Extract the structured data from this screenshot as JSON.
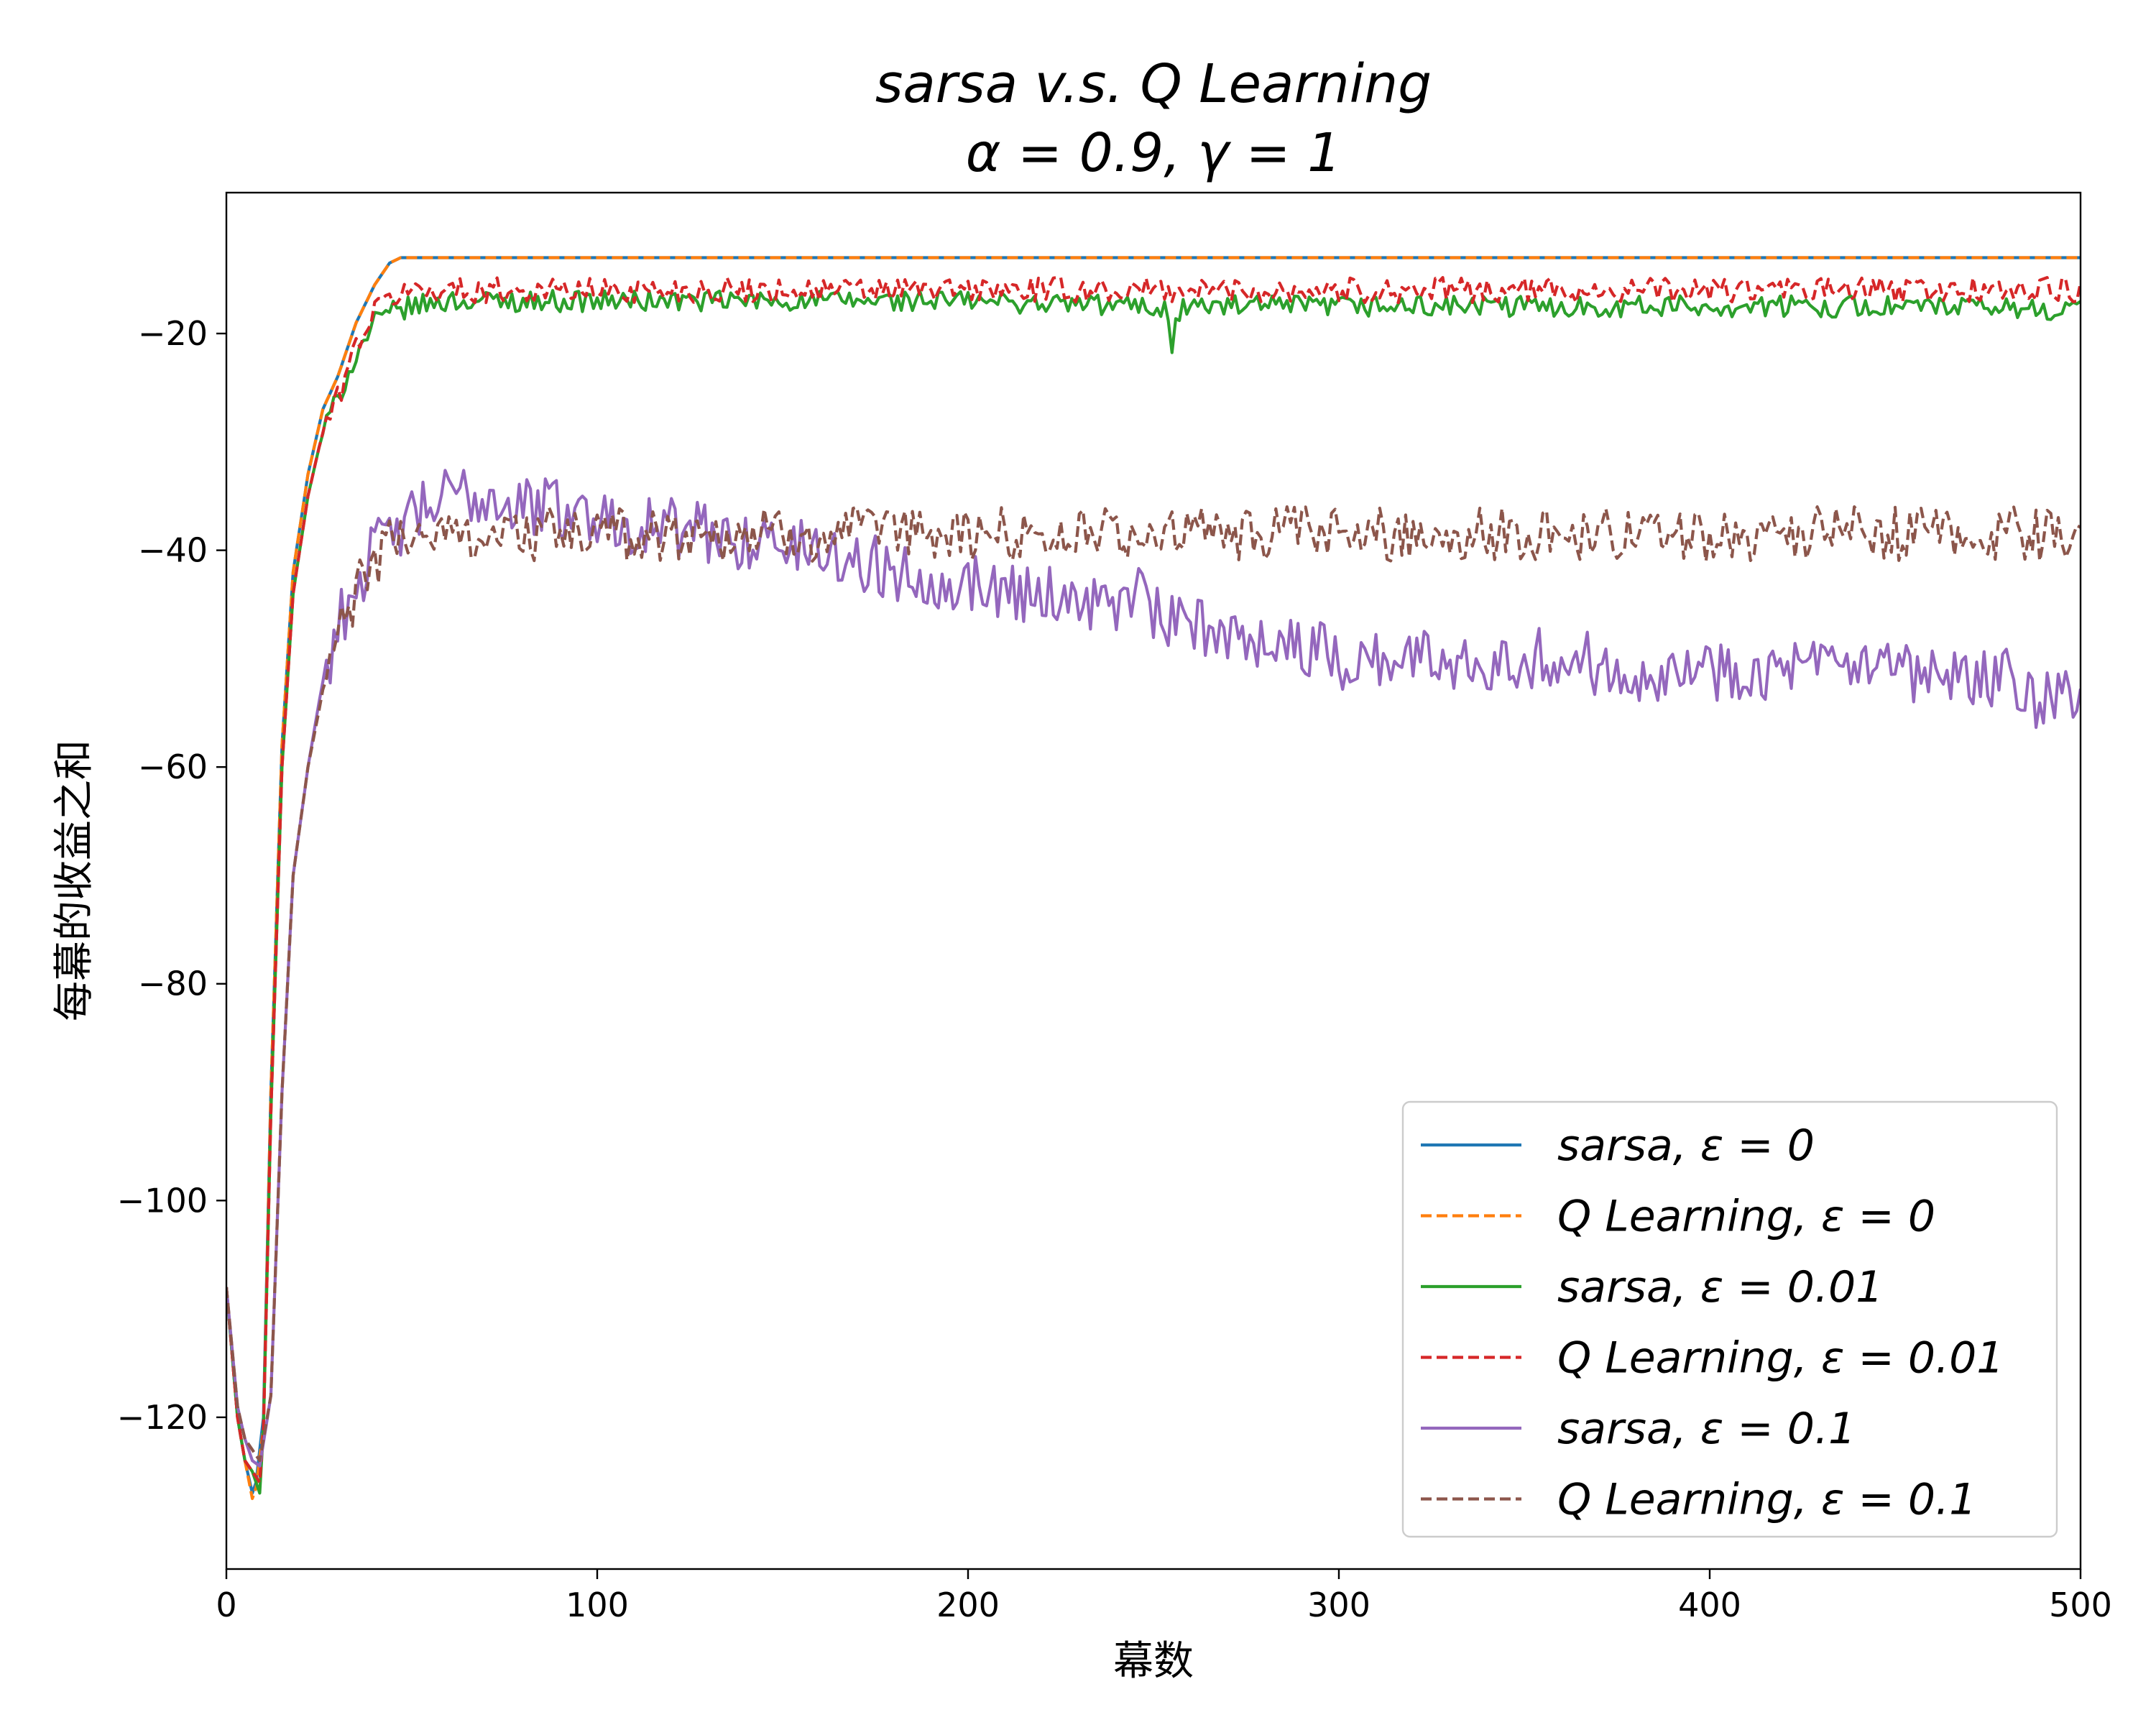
{
  "chart_data": {
    "type": "line",
    "title_line1": "sarsa   v.s.   Q Learning",
    "title_line2": "α = 0.9, γ = 1",
    "xlabel": "幕数",
    "ylabel": "每幕的收益之和",
    "xlim": [
      0,
      500
    ],
    "ylim": [
      -134,
      -7
    ],
    "xticks": [
      0,
      100,
      200,
      300,
      400,
      500
    ],
    "yticks": [
      -120,
      -100,
      -80,
      -60,
      -40,
      -20
    ],
    "ytick_labels": [
      "−120",
      "−100",
      "−80",
      "−60",
      "−40",
      "−20"
    ],
    "grid": false,
    "legend_position": "lower-right",
    "series": [
      {
        "name": "sarsa, ε = 0",
        "color": "#1f77b4",
        "dash": "solid",
        "noise": 0,
        "x": [
          0,
          3,
          5,
          7,
          8,
          10,
          12,
          15,
          18,
          22,
          26,
          30,
          35,
          40,
          44,
          47,
          50,
          100,
          200,
          300,
          400,
          500
        ],
        "y": [
          -108,
          -120,
          -124,
          -127,
          -126,
          -120,
          -90,
          -58,
          -42,
          -33,
          -27,
          -24,
          -19,
          -15.5,
          -13.5,
          -13,
          -13,
          -13,
          -13,
          -13,
          -13,
          -13
        ]
      },
      {
        "name": "Q Learning, ε = 0",
        "color": "#ff7f0e",
        "dash": "dashed",
        "noise": 0,
        "x": [
          0,
          3,
          5,
          7,
          8,
          10,
          12,
          15,
          18,
          22,
          26,
          30,
          35,
          40,
          44,
          47,
          50,
          100,
          200,
          300,
          400,
          500
        ],
        "y": [
          -108,
          -120,
          -124,
          -127.5,
          -126.5,
          -121,
          -90,
          -58,
          -42,
          -33,
          -27,
          -24,
          -19,
          -15.5,
          -13.5,
          -13,
          -13,
          -13,
          -13,
          -13,
          -13,
          -13
        ]
      },
      {
        "name": "sarsa, ε = 0.01",
        "color": "#2ca02c",
        "dash": "solid",
        "noise": 0.55,
        "x": [
          0,
          3,
          5,
          7,
          9,
          10,
          12,
          15,
          18,
          22,
          26,
          30,
          35,
          40,
          45,
          50,
          60,
          100,
          150,
          200,
          250,
          254,
          255,
          256,
          258,
          270,
          300,
          350,
          400,
          450,
          500
        ],
        "y": [
          -108,
          -120,
          -124,
          -125,
          -127,
          -121,
          -92,
          -60,
          -44,
          -35,
          -29,
          -26,
          -22,
          -19,
          -18,
          -17.5,
          -17,
          -17,
          -17,
          -17,
          -17.5,
          -18,
          -21,
          -19,
          -17.5,
          -17.5,
          -17.5,
          -17.5,
          -17.5,
          -17.5,
          -17.8
        ]
      },
      {
        "name": "Q Learning, ε = 0.01",
        "color": "#d62728",
        "dash": "dashed",
        "noise": 0.65,
        "x": [
          0,
          3,
          5,
          7,
          9,
          10,
          12,
          15,
          18,
          22,
          26,
          30,
          35,
          40,
          45,
          50,
          60,
          100,
          200,
          300,
          400,
          500
        ],
        "y": [
          -108,
          -120,
          -124,
          -125,
          -126,
          -121,
          -92,
          -60,
          -44,
          -35,
          -29,
          -26,
          -21,
          -18,
          -16.5,
          -16,
          -16,
          -16,
          -16,
          -16,
          -16,
          -16
        ]
      },
      {
        "name": "sarsa, ε = 0.1",
        "color": "#9467bd",
        "dash": "solid",
        "noise": 1.6,
        "x": [
          0,
          3,
          5,
          7,
          9,
          12,
          15,
          18,
          22,
          26,
          30,
          35,
          40,
          45,
          50,
          60,
          70,
          80,
          90,
          100,
          120,
          140,
          160,
          180,
          200,
          220,
          240,
          248,
          252,
          260,
          280,
          300,
          320,
          340,
          360,
          380,
          400,
          420,
          440,
          460,
          480,
          490,
          500
        ],
        "y": [
          -108,
          -119,
          -122,
          -124,
          -124.5,
          -118,
          -90,
          -70,
          -60,
          -52,
          -47,
          -43,
          -40,
          -38.5,
          -37,
          -35,
          -35,
          -36,
          -36,
          -37,
          -38,
          -39,
          -40,
          -42,
          -43,
          -44,
          -45,
          -44,
          -47,
          -47,
          -48,
          -50,
          -50,
          -50,
          -50,
          -51,
          -51,
          -51,
          -51,
          -52,
          -52,
          -54,
          -54
        ]
      },
      {
        "name": "Q Learning, ε = 0.1",
        "color": "#8c564b",
        "dash": "dashed",
        "noise": 1.4,
        "x": [
          0,
          3,
          5,
          7,
          9,
          12,
          15,
          18,
          22,
          26,
          30,
          35,
          40,
          45,
          50,
          60,
          80,
          100,
          150,
          200,
          250,
          300,
          350,
          400,
          450,
          500
        ],
        "y": [
          -108,
          -119,
          -122,
          -123,
          -124,
          -118,
          -90,
          -70,
          -60,
          -53,
          -48,
          -44,
          -41,
          -39,
          -38.5,
          -38.5,
          -38.5,
          -38.5,
          -38.5,
          -38.5,
          -38.5,
          -38.5,
          -38.5,
          -38.5,
          -38.5,
          -38.5
        ]
      }
    ]
  }
}
